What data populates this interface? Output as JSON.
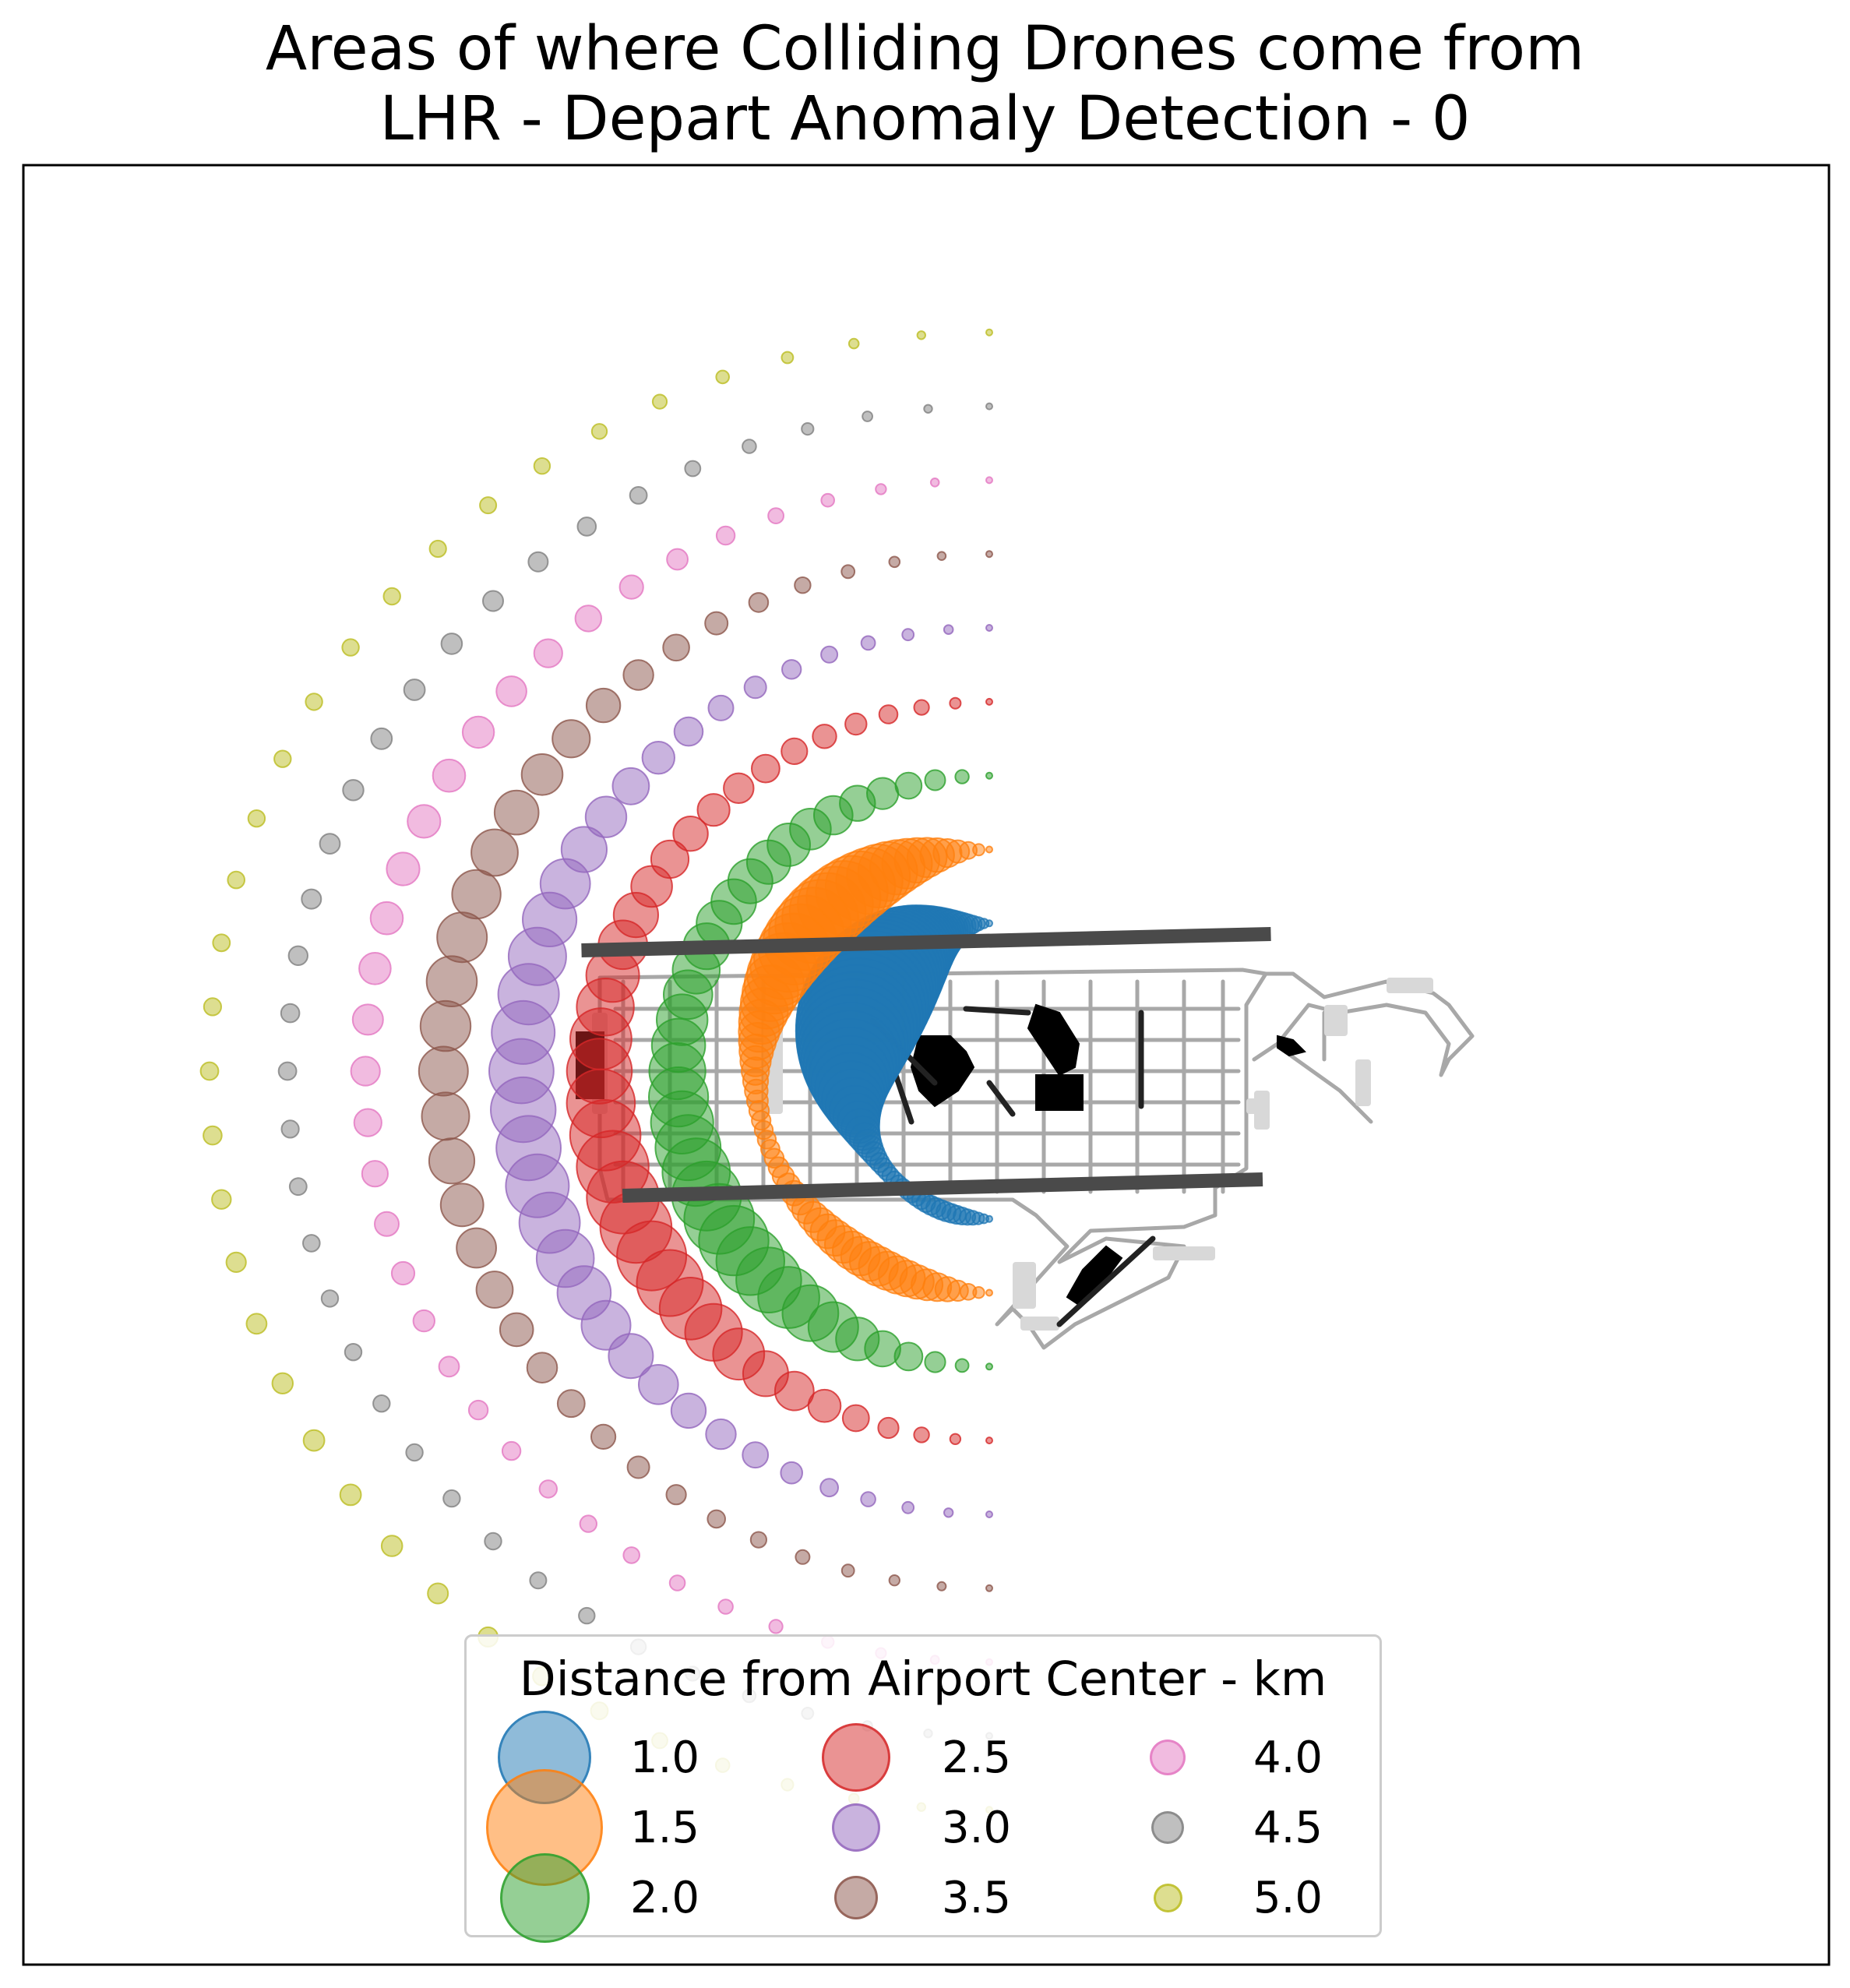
{
  "chart_data": {
    "type": "scatter",
    "title_lines": [
      "Areas of where Colliding Drones come from",
      "LHR - Depart Anomaly Detection - 0"
    ],
    "xlabel": "",
    "ylabel": "",
    "xlim": [
      -5.5,
      5.5
    ],
    "ylim": [
      -5.5,
      5.5
    ],
    "grid": false,
    "legend": {
      "title": "Distance from Airport Center - km",
      "placement": "lower-center",
      "columns": 3
    },
    "colors": {
      "1.0": "#1f77b4",
      "1.5": "#ff7f0e",
      "2.0": "#2ca02c",
      "2.5": "#d62728",
      "3.0": "#9467bd",
      "3.5": "#8c564b",
      "4.0": "#e377c2",
      "4.5": "#7f7f7f",
      "5.0": "#bcbd22"
    },
    "series": [
      {
        "name": "1.0",
        "distance_km": 1.0,
        "legend_size": 1.0
      },
      {
        "name": "1.5",
        "distance_km": 1.5,
        "legend_size": 1.3
      },
      {
        "name": "2.0",
        "distance_km": 2.0,
        "legend_size": 0.95
      },
      {
        "name": "2.5",
        "distance_km": 2.5,
        "legend_size": 0.68
      },
      {
        "name": "3.0",
        "distance_km": 3.0,
        "legend_size": 0.42
      },
      {
        "name": "3.5",
        "distance_km": 3.5,
        "legend_size": 0.36
      },
      {
        "name": "4.0",
        "distance_km": 4.0,
        "legend_size": 0.26
      },
      {
        "name": "4.5",
        "distance_km": 4.5,
        "legend_size": 0.22
      },
      {
        "name": "5.0",
        "distance_km": 5.0,
        "legend_size": 0.17
      }
    ],
    "arc_angle_range_deg": [
      90,
      270
    ],
    "airport": {
      "runways": [
        {
          "x1": -2.1,
          "y1": 0.7,
          "x2": 2.1,
          "y2": 0.8
        },
        {
          "x1": -1.85,
          "y1": -0.8,
          "x2": 2.05,
          "y2": -0.7
        }
      ]
    }
  }
}
